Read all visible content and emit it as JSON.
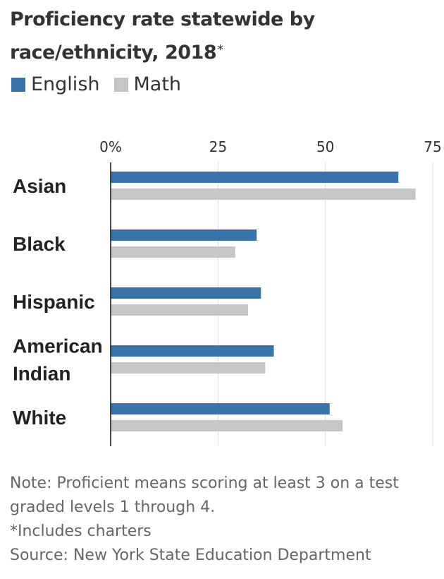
{
  "title": "Proficiency rate statewide by race/ethnicity, 2018",
  "title_suffix": "*",
  "colors": {
    "english": "#3a73a8",
    "math": "#c6c6c6",
    "axis": "#111111",
    "grid": "#dddddd",
    "label": "#222222"
  },
  "chart_data": {
    "type": "bar",
    "orientation": "horizontal",
    "categories": [
      "Asian",
      "Black",
      "Hispanic",
      "American Indian",
      "White"
    ],
    "category_lines": [
      [
        "Asian"
      ],
      [
        "Black"
      ],
      [
        "Hispanic"
      ],
      [
        "American",
        "Indian"
      ],
      [
        "White"
      ]
    ],
    "series": [
      {
        "name": "English",
        "values": [
          67,
          34,
          35,
          38,
          51
        ]
      },
      {
        "name": "Math",
        "values": [
          71,
          29,
          32,
          36,
          54
        ]
      }
    ],
    "xticks": [
      0,
      25,
      50,
      75
    ],
    "xtick_labels": [
      "0%",
      "25",
      "50",
      "75"
    ],
    "xlim": [
      0,
      75
    ],
    "grid": true,
    "legend_position": "top-left"
  },
  "notes": [
    "Note: Proficient means scoring at least 3 on a test",
    "graded levels 1 through 4.",
    "*Includes charters",
    "Source: New York State Education Department"
  ]
}
